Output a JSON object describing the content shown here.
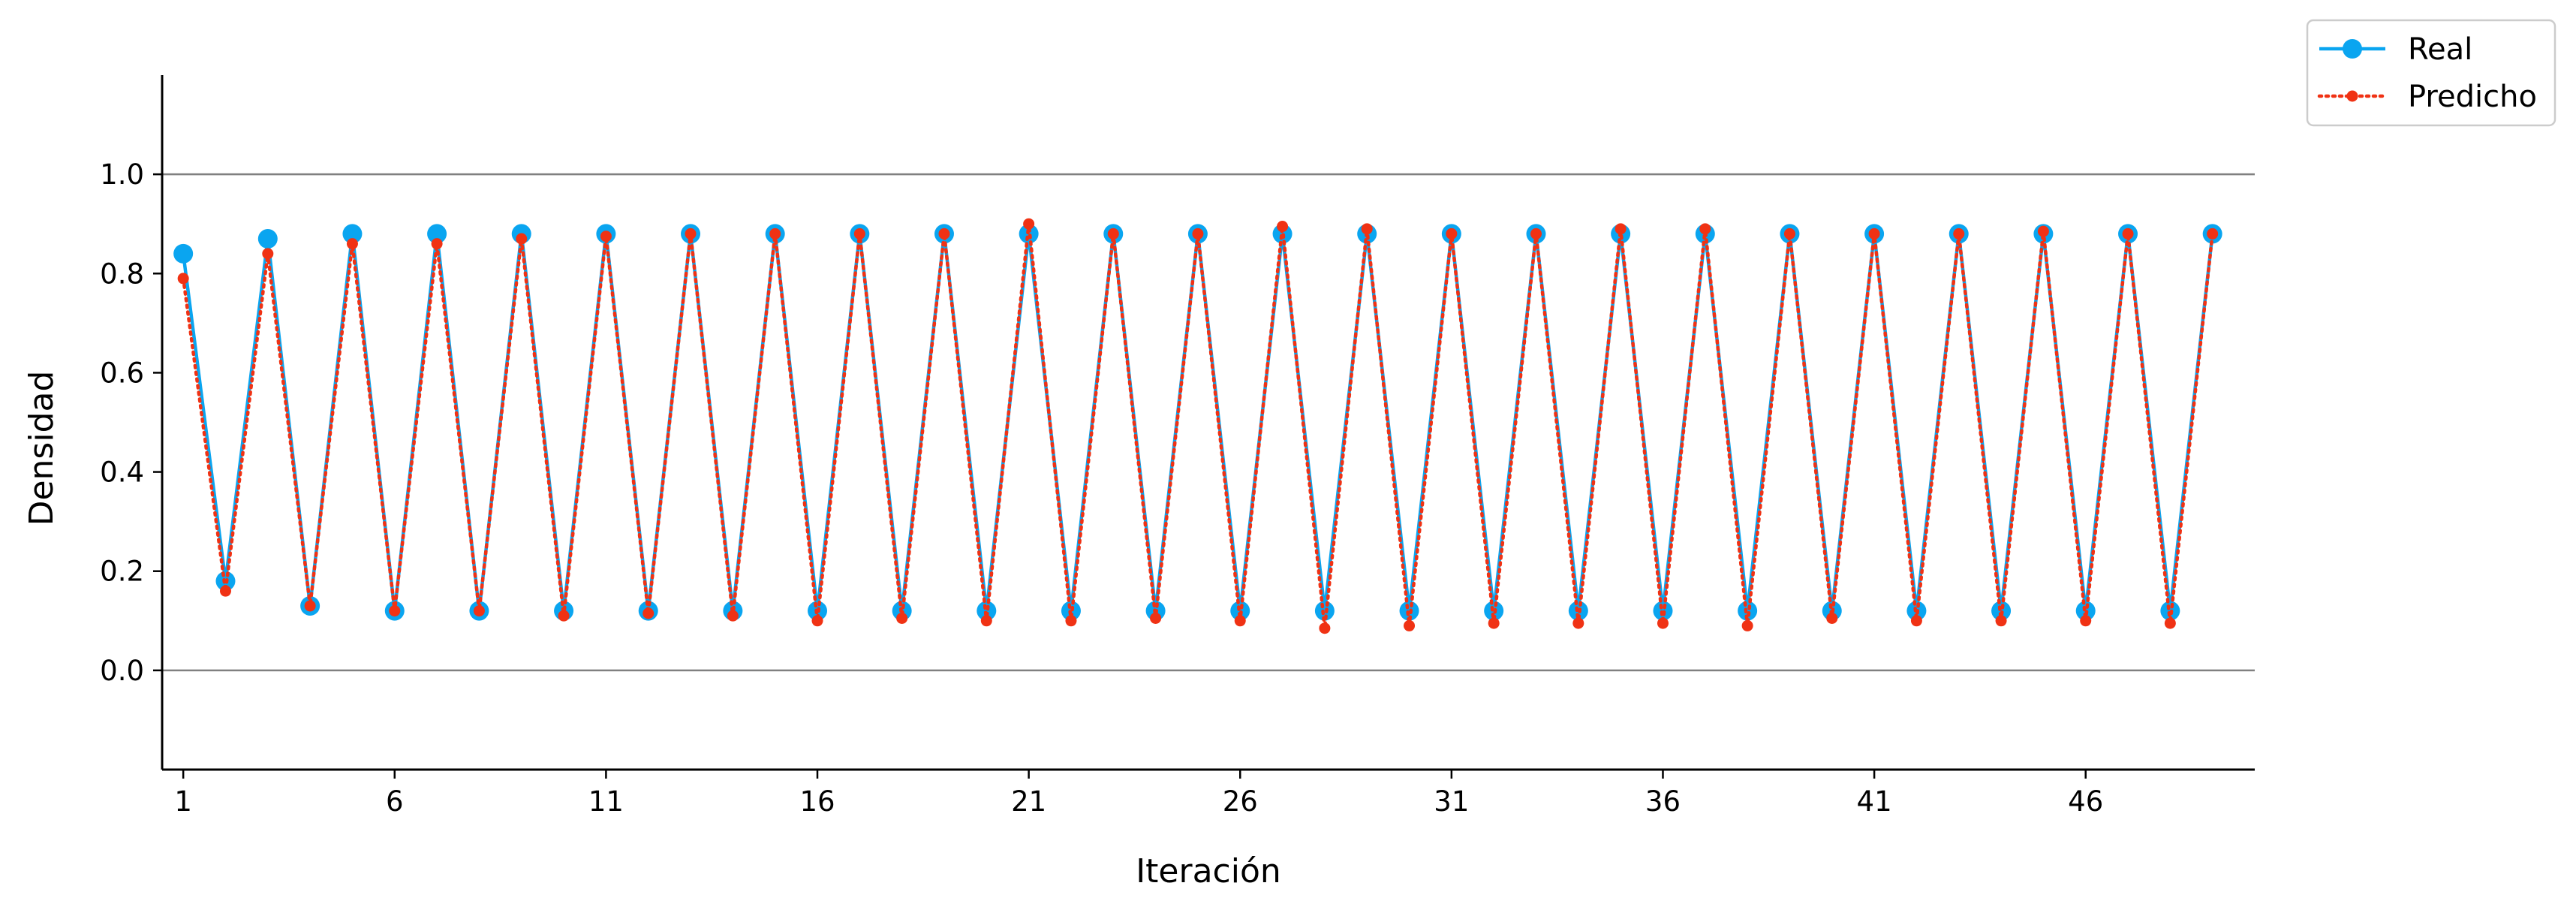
{
  "chart_data": {
    "type": "line",
    "xlabel": "Iteración",
    "ylabel": "Densidad",
    "xlim": [
      0.5,
      50
    ],
    "ylim": [
      -0.2,
      1.2
    ],
    "xticks": [
      1,
      6,
      11,
      16,
      21,
      26,
      31,
      36,
      41,
      46
    ],
    "yticks": [
      0.0,
      0.2,
      0.4,
      0.6,
      0.8,
      1.0
    ],
    "ytick_labels": [
      "0.0",
      "0.2",
      "0.4",
      "0.6",
      "0.8",
      "1.0"
    ],
    "reference_lines_y": [
      0.0,
      1.0
    ],
    "grid": false,
    "legend_position": "outside top-right",
    "x": [
      1,
      2,
      3,
      4,
      5,
      6,
      7,
      8,
      9,
      10,
      11,
      12,
      13,
      14,
      15,
      16,
      17,
      18,
      19,
      20,
      21,
      22,
      23,
      24,
      25,
      26,
      27,
      28,
      29,
      30,
      31,
      32,
      33,
      34,
      35,
      36,
      37,
      38,
      39,
      40,
      41,
      42,
      43,
      44,
      45,
      46,
      47,
      48,
      49
    ],
    "series": [
      {
        "name": "Real",
        "color": "#0aa5f0",
        "line_style": "solid",
        "marker": "circle",
        "values": [
          0.84,
          0.18,
          0.87,
          0.13,
          0.88,
          0.12,
          0.88,
          0.12,
          0.88,
          0.12,
          0.88,
          0.12,
          0.88,
          0.12,
          0.88,
          0.12,
          0.88,
          0.12,
          0.88,
          0.12,
          0.88,
          0.12,
          0.88,
          0.12,
          0.88,
          0.12,
          0.88,
          0.12,
          0.88,
          0.12,
          0.88,
          0.12,
          0.88,
          0.12,
          0.88,
          0.12,
          0.88,
          0.12,
          0.88,
          0.12,
          0.88,
          0.12,
          0.88,
          0.12,
          0.88,
          0.12,
          0.88,
          0.12,
          0.88
        ]
      },
      {
        "name": "Predicho",
        "color": "#f03214",
        "line_style": "dotted",
        "marker": "small-circle",
        "values": [
          0.79,
          0.16,
          0.84,
          0.13,
          0.86,
          0.12,
          0.86,
          0.12,
          0.87,
          0.11,
          0.875,
          0.115,
          0.88,
          0.11,
          0.88,
          0.1,
          0.88,
          0.105,
          0.88,
          0.1,
          0.9,
          0.1,
          0.88,
          0.105,
          0.88,
          0.1,
          0.895,
          0.085,
          0.89,
          0.09,
          0.88,
          0.095,
          0.88,
          0.095,
          0.89,
          0.095,
          0.89,
          0.09,
          0.88,
          0.105,
          0.88,
          0.1,
          0.88,
          0.1,
          0.885,
          0.1,
          0.88,
          0.095,
          0.88
        ]
      }
    ]
  }
}
